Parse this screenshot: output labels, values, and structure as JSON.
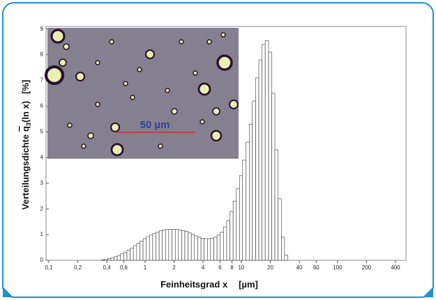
{
  "chart_data": {
    "type": "histogram",
    "xlabel": {
      "name": "Feinheitsgrad x",
      "unit": "[µm]"
    },
    "ylabel": {
      "name": "Verteilungsdichte",
      "symbol": "q",
      "subscript": "3",
      "argument": "(ln x)",
      "unit": "[%]"
    },
    "annotation": "50 µm",
    "xscale": "log",
    "color": "#ffffff",
    "edgecolor": "#333333",
    "bins": [
      0.35,
      0.378,
      0.408,
      0.441,
      0.476,
      0.514,
      0.555,
      0.6,
      0.648,
      0.7,
      0.756,
      0.816,
      0.882,
      0.952,
      1.03,
      1.11,
      1.2,
      1.3,
      1.4,
      1.51,
      1.63,
      1.76,
      1.9,
      2.06,
      2.22,
      2.4,
      2.59,
      2.8,
      3.02,
      3.26,
      3.52,
      3.81,
      4.11,
      4.44,
      4.79,
      5.18,
      5.59,
      6.04,
      6.52,
      7.04,
      7.61,
      8.21,
      8.87,
      9.58,
      10.3,
      11.2,
      12.1,
      13.0,
      14.1,
      15.2,
      16.4,
      17.7,
      19.2,
      20.7,
      22.3,
      24.1,
      26.1,
      28.1,
      30.4
    ],
    "values": [
      0.02,
      0.04,
      0.07,
      0.1,
      0.14,
      0.19,
      0.25,
      0.32,
      0.4,
      0.48,
      0.57,
      0.66,
      0.75,
      0.84,
      0.92,
      0.99,
      1.05,
      1.1,
      1.15,
      1.18,
      1.2,
      1.21,
      1.21,
      1.2,
      1.19,
      1.16,
      1.12,
      1.07,
      1.01,
      0.95,
      0.9,
      0.86,
      0.84,
      0.84,
      0.86,
      0.9,
      0.98,
      1.1,
      1.3,
      1.55,
      1.9,
      2.3,
      2.8,
      3.3,
      3.9,
      4.6,
      5.3,
      6.2,
      7.1,
      7.8,
      8.4,
      8.55,
      8.1,
      6.5,
      4.3,
      2.4,
      0.9,
      0.2
    ],
    "xlim": [
      0.0935,
      514
    ],
    "xticks": [
      {
        "value": 0.1,
        "label": "0,1"
      },
      {
        "value": 0.2,
        "label": "0,2"
      },
      {
        "value": 0.4,
        "label": "0,4"
      },
      {
        "value": 0.6,
        "label": "0,6"
      },
      1,
      2,
      4,
      6,
      8,
      10,
      20,
      40,
      60,
      100,
      200,
      400
    ],
    "ylim": [
      0,
      9.1
    ],
    "yticks": [
      0,
      1,
      2,
      3,
      4,
      5,
      6,
      7,
      8,
      9
    ],
    "grid": false
  }
}
